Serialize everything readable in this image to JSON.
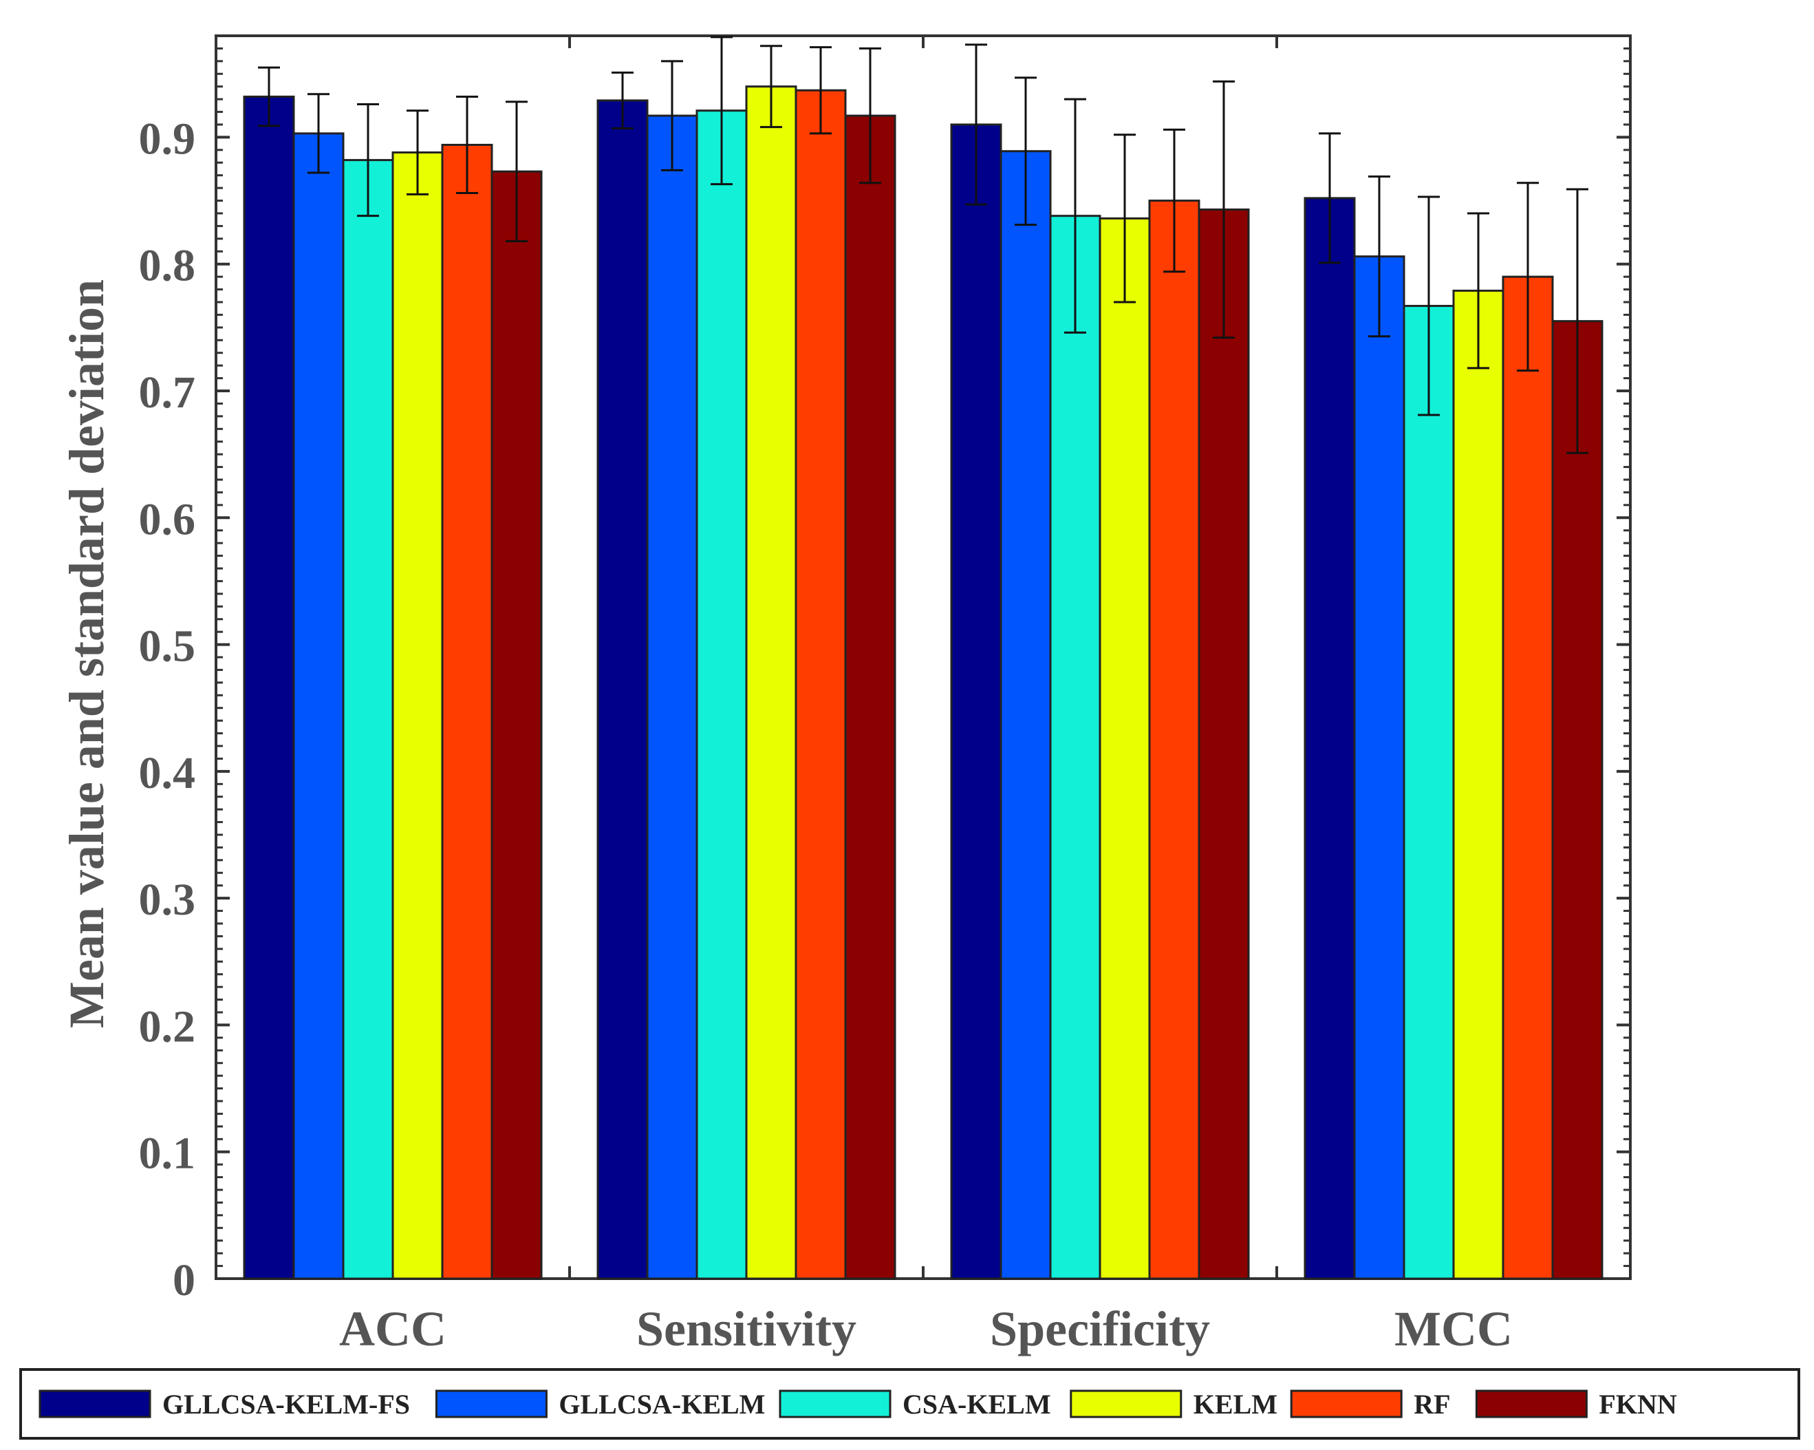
{
  "chart_data": {
    "type": "bar",
    "ylabel": "Mean value and standard deviation",
    "xlabel": "",
    "ylim": [
      0,
      0.98
    ],
    "yticks": [
      "0",
      "0.1",
      "0.2",
      "0.3",
      "0.4",
      "0.5",
      "0.6",
      "0.7",
      "0.8",
      "0.9"
    ],
    "categories": [
      "ACC",
      "Sensitivity",
      "Specificity",
      "MCC"
    ],
    "legend_position": "bottom",
    "series": [
      {
        "name": "GLLCSA-KELM-FS",
        "color": "#00008b",
        "values": [
          0.932,
          0.929,
          0.91,
          0.852
        ],
        "std": [
          0.023,
          0.022,
          0.063,
          0.051
        ]
      },
      {
        "name": "GLLCSA-KELM",
        "color": "#0055ff",
        "values": [
          0.903,
          0.917,
          0.889,
          0.806
        ],
        "std": [
          0.031,
          0.043,
          0.058,
          0.063
        ]
      },
      {
        "name": "CSA-KELM",
        "color": "#12f0d8",
        "values": [
          0.882,
          0.921,
          0.838,
          0.767
        ],
        "std": [
          0.044,
          0.058,
          0.092,
          0.086
        ]
      },
      {
        "name": "KELM",
        "color": "#e8ff00",
        "values": [
          0.888,
          0.94,
          0.836,
          0.779
        ],
        "std": [
          0.033,
          0.032,
          0.066,
          0.061
        ]
      },
      {
        "name": "RF",
        "color": "#ff3d00",
        "values": [
          0.894,
          0.937,
          0.85,
          0.79
        ],
        "std": [
          0.038,
          0.034,
          0.056,
          0.074
        ]
      },
      {
        "name": "FKNN",
        "color": "#8b0000",
        "values": [
          0.873,
          0.917,
          0.843,
          0.755
        ],
        "std": [
          0.055,
          0.053,
          0.101,
          0.104
        ]
      }
    ]
  }
}
